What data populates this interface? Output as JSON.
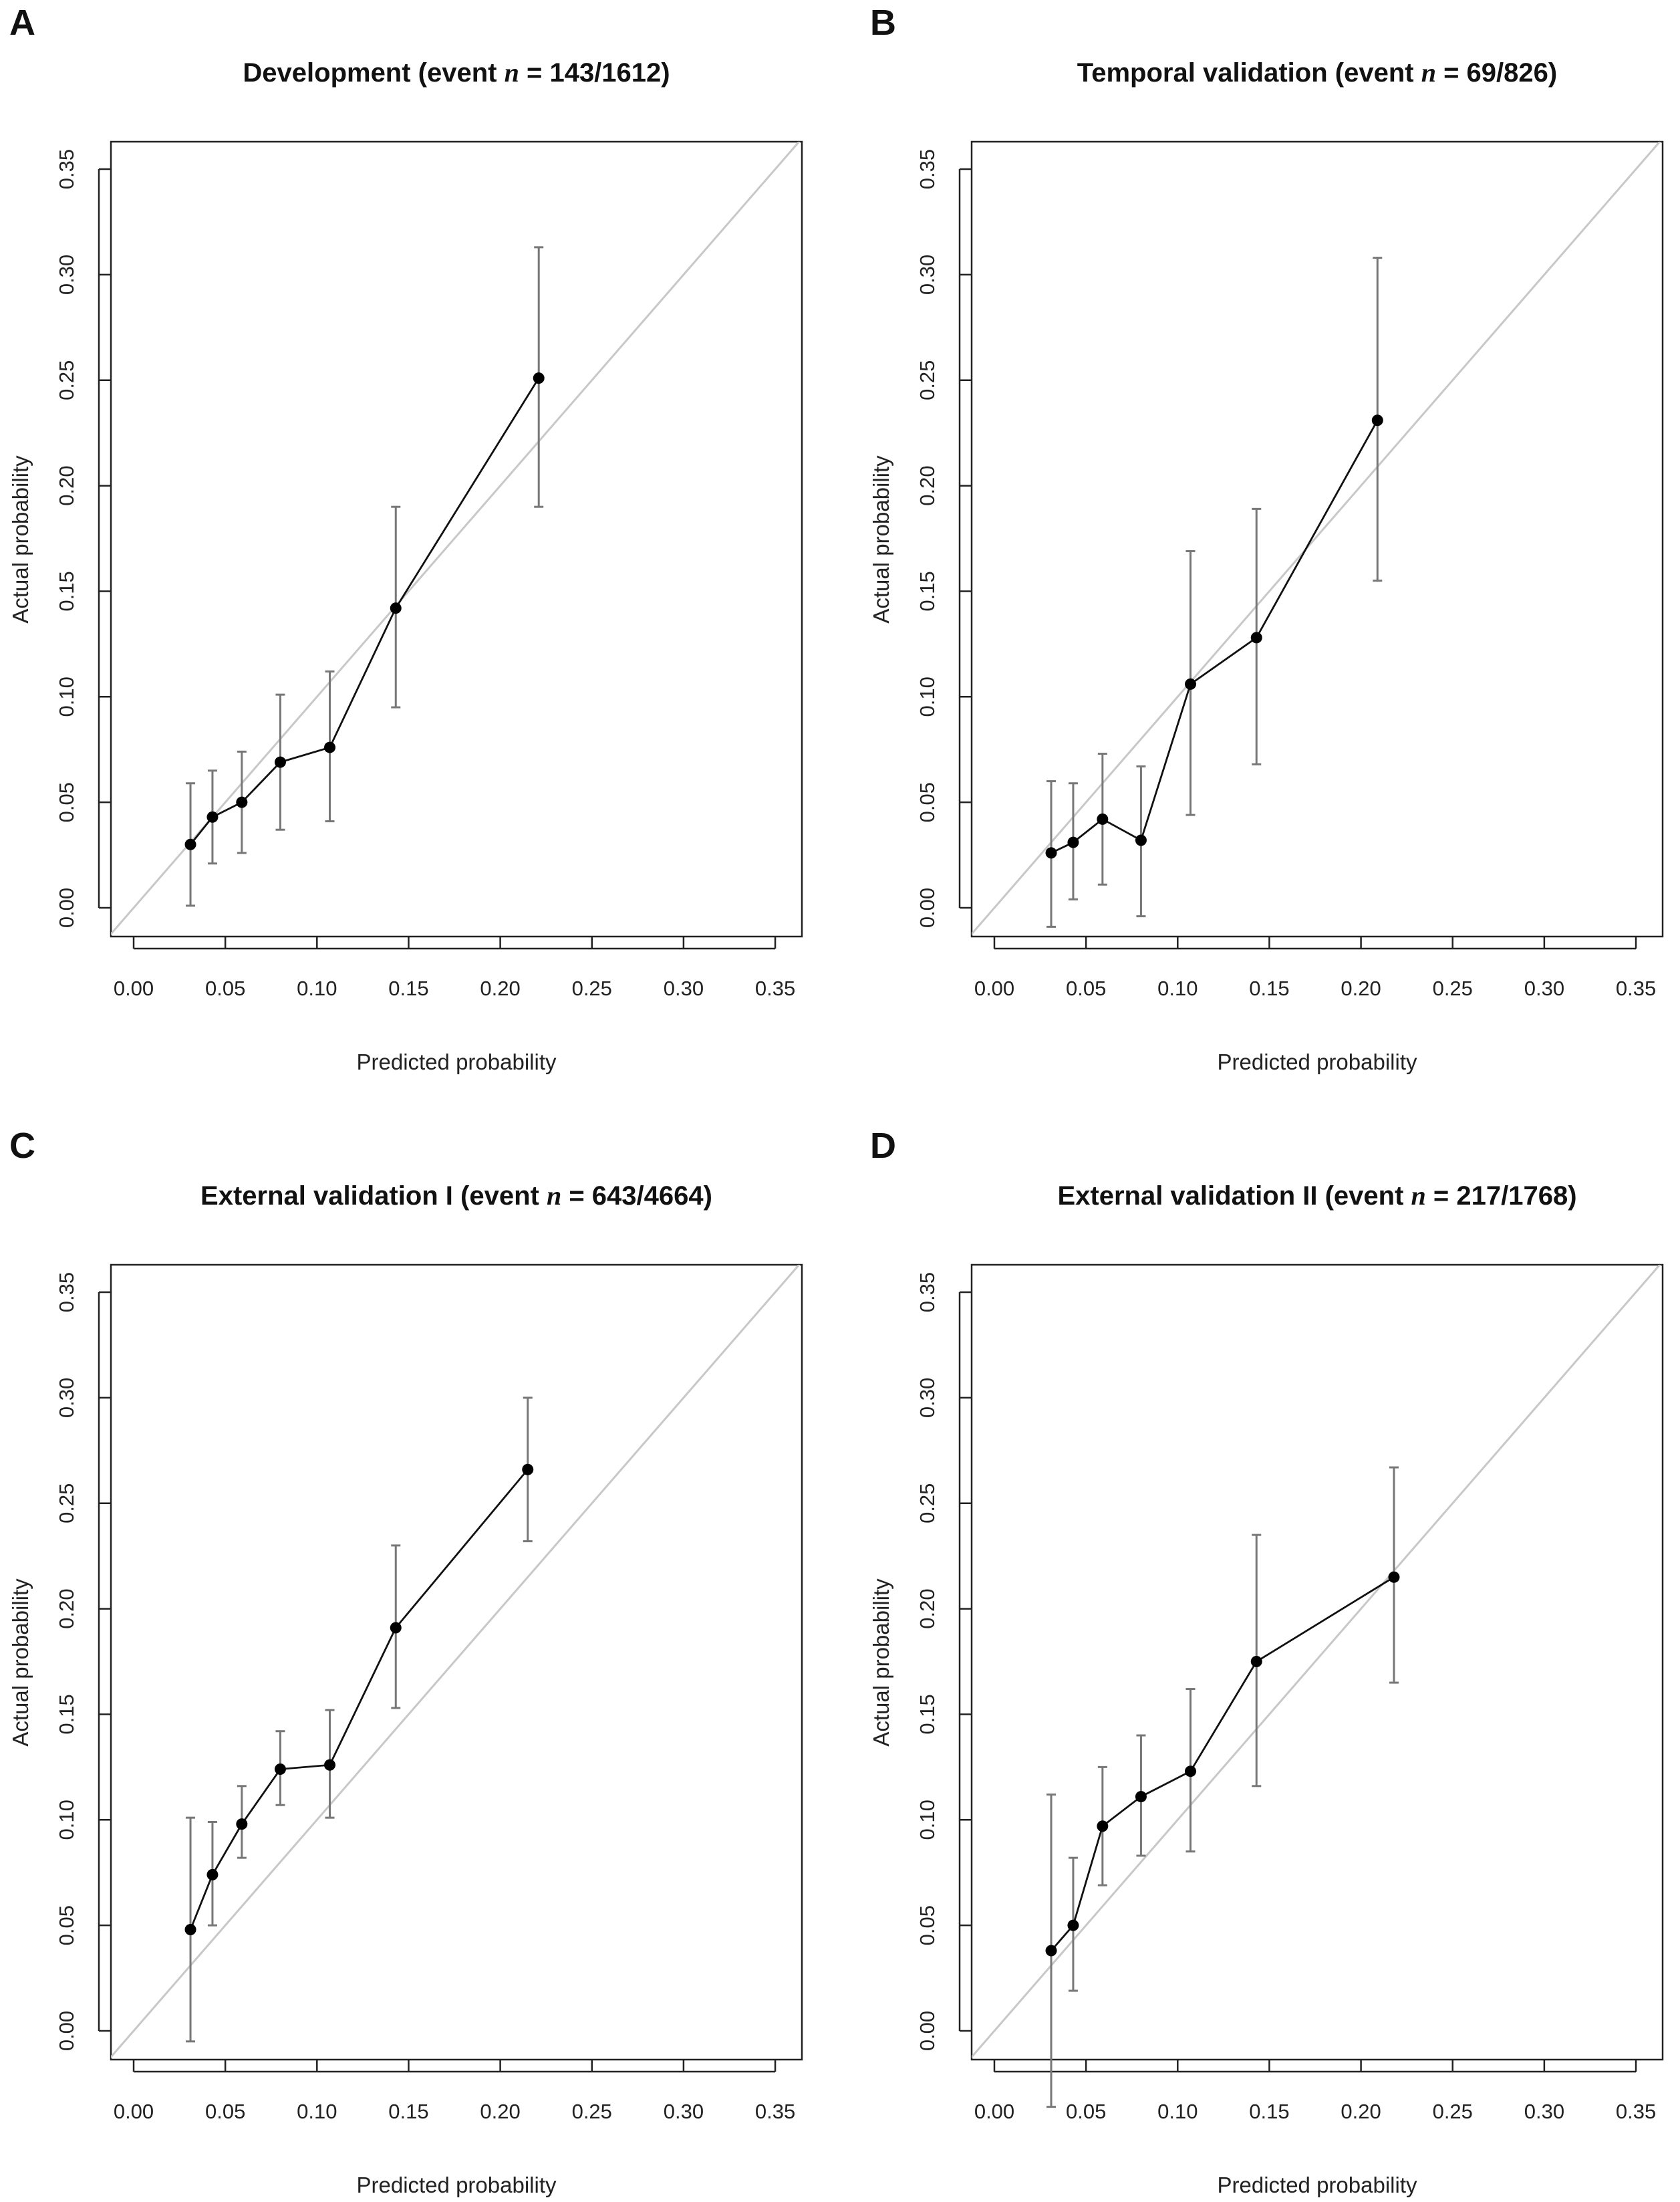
{
  "chart_data": [
    {
      "type": "line",
      "panel_label": "A",
      "title": {
        "prefix": "Development (event ",
        "n": "n",
        "suffix": " = 143/1612)"
      },
      "xlabel": "Predicted probability",
      "ylabel": "Actual probability",
      "xlim": [
        0,
        0.35
      ],
      "ylim": [
        0,
        0.35
      ],
      "xticks": [
        "0.00",
        "0.05",
        "0.10",
        "0.15",
        "0.20",
        "0.25",
        "0.30",
        "0.35"
      ],
      "yticks": [
        "0.00",
        "0.05",
        "0.10",
        "0.15",
        "0.20",
        "0.25",
        "0.30",
        "0.35"
      ],
      "reference_line": "y = x",
      "series": [
        {
          "x": [
            0.031,
            0.043,
            0.059,
            0.08,
            0.107,
            0.143,
            0.221
          ],
          "y": [
            0.03,
            0.043,
            0.05,
            0.069,
            0.076,
            0.142,
            0.251
          ],
          "ci_low": [
            0.001,
            0.021,
            0.026,
            0.037,
            0.041,
            0.095,
            0.19
          ],
          "ci_high": [
            0.059,
            0.065,
            0.074,
            0.101,
            0.112,
            0.19,
            0.313
          ]
        }
      ]
    },
    {
      "type": "line",
      "panel_label": "B",
      "title": {
        "prefix": "Temporal validation (event ",
        "n": "n",
        "suffix": " = 69/826)"
      },
      "xlabel": "Predicted probability",
      "ylabel": "Actual probability",
      "xlim": [
        0,
        0.35
      ],
      "ylim": [
        0,
        0.35
      ],
      "xticks": [
        "0.00",
        "0.05",
        "0.10",
        "0.15",
        "0.20",
        "0.25",
        "0.30",
        "0.35"
      ],
      "yticks": [
        "0.00",
        "0.05",
        "0.10",
        "0.15",
        "0.20",
        "0.25",
        "0.30",
        "0.35"
      ],
      "reference_line": "y = x",
      "series": [
        {
          "x": [
            0.031,
            0.043,
            0.059,
            0.08,
            0.107,
            0.143,
            0.209
          ],
          "y": [
            0.026,
            0.031,
            0.042,
            0.032,
            0.106,
            0.128,
            0.231
          ],
          "ci_low": [
            -0.009,
            0.004,
            0.011,
            -0.004,
            0.044,
            0.068,
            0.155
          ],
          "ci_high": [
            0.06,
            0.059,
            0.073,
            0.067,
            0.169,
            0.189,
            0.308
          ]
        }
      ]
    },
    {
      "type": "line",
      "panel_label": "C",
      "title": {
        "prefix": "External validation I (event ",
        "n": "n",
        "suffix": " = 643/4664)"
      },
      "xlabel": "Predicted probability",
      "ylabel": "Actual probability",
      "xlim": [
        0,
        0.35
      ],
      "ylim": [
        0,
        0.35
      ],
      "xticks": [
        "0.00",
        "0.05",
        "0.10",
        "0.15",
        "0.20",
        "0.25",
        "0.30",
        "0.35"
      ],
      "yticks": [
        "0.00",
        "0.05",
        "0.10",
        "0.15",
        "0.20",
        "0.25",
        "0.30",
        "0.35"
      ],
      "reference_line": "y = x",
      "series": [
        {
          "x": [
            0.031,
            0.043,
            0.059,
            0.08,
            0.107,
            0.143,
            0.215
          ],
          "y": [
            0.048,
            0.074,
            0.098,
            0.124,
            0.126,
            0.191,
            0.266
          ],
          "ci_low": [
            -0.005,
            0.05,
            0.082,
            0.107,
            0.101,
            0.153,
            0.232
          ],
          "ci_high": [
            0.101,
            0.099,
            0.116,
            0.142,
            0.152,
            0.23,
            0.3
          ]
        }
      ]
    },
    {
      "type": "line",
      "panel_label": "D",
      "title": {
        "prefix": "External validation II (event ",
        "n": "n",
        "suffix": " = 217/1768)"
      },
      "xlabel": "Predicted probability",
      "ylabel": "Actual probability",
      "xlim": [
        0,
        0.35
      ],
      "ylim": [
        0,
        0.35
      ],
      "xticks": [
        "0.00",
        "0.05",
        "0.10",
        "0.15",
        "0.20",
        "0.25",
        "0.30",
        "0.35"
      ],
      "yticks": [
        "0.00",
        "0.05",
        "0.10",
        "0.15",
        "0.20",
        "0.25",
        "0.30",
        "0.35"
      ],
      "reference_line": "y = x",
      "series": [
        {
          "x": [
            0.031,
            0.043,
            0.059,
            0.08,
            0.107,
            0.143,
            0.218
          ],
          "y": [
            0.038,
            0.05,
            0.097,
            0.111,
            0.123,
            0.175,
            0.215
          ],
          "ci_low": [
            -0.036,
            0.019,
            0.069,
            0.083,
            0.085,
            0.116,
            0.165
          ],
          "ci_high": [
            0.112,
            0.082,
            0.125,
            0.14,
            0.162,
            0.235,
            0.267
          ]
        }
      ]
    }
  ]
}
